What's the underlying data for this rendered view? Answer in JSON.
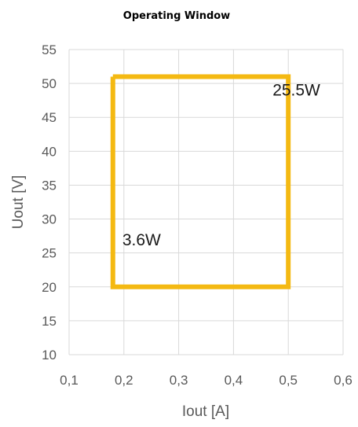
{
  "chart_data": {
    "type": "line",
    "title": "Operating Window",
    "xlabel": "Iout [A]",
    "ylabel": "Uout [V]",
    "xlim": [
      0.1,
      0.6
    ],
    "ylim": [
      10,
      55
    ],
    "x_ticks": [
      "0,1",
      "0,2",
      "0,3",
      "0,4",
      "0,5",
      "0,6"
    ],
    "y_ticks": [
      "10",
      "15",
      "20",
      "25",
      "30",
      "35",
      "40",
      "45",
      "50",
      "55"
    ],
    "grid": true,
    "series": [
      {
        "color": "#f4b912",
        "x": [
          0.18,
          0.5,
          0.5,
          0.18,
          0.18
        ],
        "y": [
          51,
          51,
          20,
          20,
          51
        ]
      }
    ],
    "annotations": [
      {
        "text": "25.5W",
        "x": 0.5,
        "y": 51
      },
      {
        "text": "3.6W",
        "x": 0.18,
        "y": 20
      }
    ]
  }
}
